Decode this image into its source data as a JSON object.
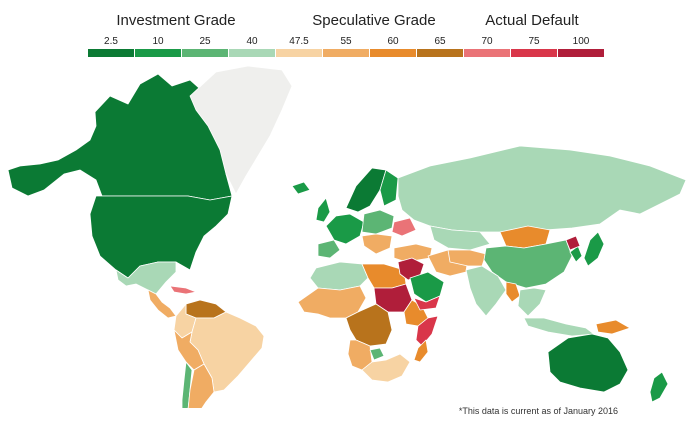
{
  "legend_groups": [
    {
      "label": "Investment Grade"
    },
    {
      "label": "Speculative Grade"
    },
    {
      "label": "Actual Default"
    }
  ],
  "legend_items": [
    {
      "value": "2.5",
      "color": "#0b7a34"
    },
    {
      "value": "10",
      "color": "#1a9a47"
    },
    {
      "value": "25",
      "color": "#5cb574"
    },
    {
      "value": "40",
      "color": "#a9d8b6"
    },
    {
      "value": "47.5",
      "color": "#f7d3a3"
    },
    {
      "value": "55",
      "color": "#f0ac63"
    },
    {
      "value": "60",
      "color": "#e88b2c"
    },
    {
      "value": "65",
      "color": "#b8731c"
    },
    {
      "value": "70",
      "color": "#ea7377"
    },
    {
      "value": "75",
      "color": "#d9364a"
    },
    {
      "value": "100",
      "color": "#b01e3a"
    }
  ],
  "colors": {
    "no_data": "#efefed"
  },
  "footnote": "*This data is current as of January 2016",
  "regions": [
    {
      "name": "canada",
      "value": "2.5"
    },
    {
      "name": "usa",
      "value": "2.5"
    },
    {
      "name": "greenland",
      "value": null
    },
    {
      "name": "mexico",
      "value": "40"
    },
    {
      "name": "central-america",
      "value": "55"
    },
    {
      "name": "caribbean",
      "value": "70"
    },
    {
      "name": "venezuela",
      "value": "65"
    },
    {
      "name": "colombia",
      "value": "47.5"
    },
    {
      "name": "brazil",
      "value": "47.5"
    },
    {
      "name": "peru-bolivia",
      "value": "55"
    },
    {
      "name": "chile",
      "value": "25"
    },
    {
      "name": "argentina",
      "value": "55"
    },
    {
      "name": "iceland",
      "value": "10"
    },
    {
      "name": "uk",
      "value": "10"
    },
    {
      "name": "scandinavia",
      "value": "2.5"
    },
    {
      "name": "finland",
      "value": "10"
    },
    {
      "name": "western-europe",
      "value": "10"
    },
    {
      "name": "iberia",
      "value": "25"
    },
    {
      "name": "eastern-europe",
      "value": "25"
    },
    {
      "name": "balkans",
      "value": "55"
    },
    {
      "name": "ukraine",
      "value": "70"
    },
    {
      "name": "russia",
      "value": "40"
    },
    {
      "name": "turkey",
      "value": "55"
    },
    {
      "name": "north-africa",
      "value": "40"
    },
    {
      "name": "west-africa",
      "value": "55"
    },
    {
      "name": "libya-egypt",
      "value": "60"
    },
    {
      "name": "sudan",
      "value": "100"
    },
    {
      "name": "central-africa",
      "value": "65"
    },
    {
      "name": "ethiopia",
      "value": "60"
    },
    {
      "name": "somalia",
      "value": "75"
    },
    {
      "name": "angola",
      "value": "55"
    },
    {
      "name": "southern-africa",
      "value": "47.5"
    },
    {
      "name": "botswana",
      "value": "25"
    },
    {
      "name": "madagascar",
      "value": "60"
    },
    {
      "name": "syria-iraq",
      "value": "100"
    },
    {
      "name": "saudi-arabia",
      "value": "10"
    },
    {
      "name": "yemen",
      "value": "75"
    },
    {
      "name": "iran",
      "value": "55"
    },
    {
      "name": "kazakhstan",
      "value": "40"
    },
    {
      "name": "central-asia",
      "value": "55"
    },
    {
      "name": "mongolia",
      "value": "60"
    },
    {
      "name": "china",
      "value": "25"
    },
    {
      "name": "india",
      "value": "40"
    },
    {
      "name": "myanmar",
      "value": "60"
    },
    {
      "name": "southeast-asia",
      "value": "40"
    },
    {
      "name": "korea",
      "value": "10"
    },
    {
      "name": "north-korea",
      "value": "100"
    },
    {
      "name": "japan",
      "value": "10"
    },
    {
      "name": "indonesia",
      "value": "40"
    },
    {
      "name": "papua",
      "value": "60"
    },
    {
      "name": "australia",
      "value": "2.5"
    },
    {
      "name": "new-zealand",
      "value": "10"
    }
  ]
}
